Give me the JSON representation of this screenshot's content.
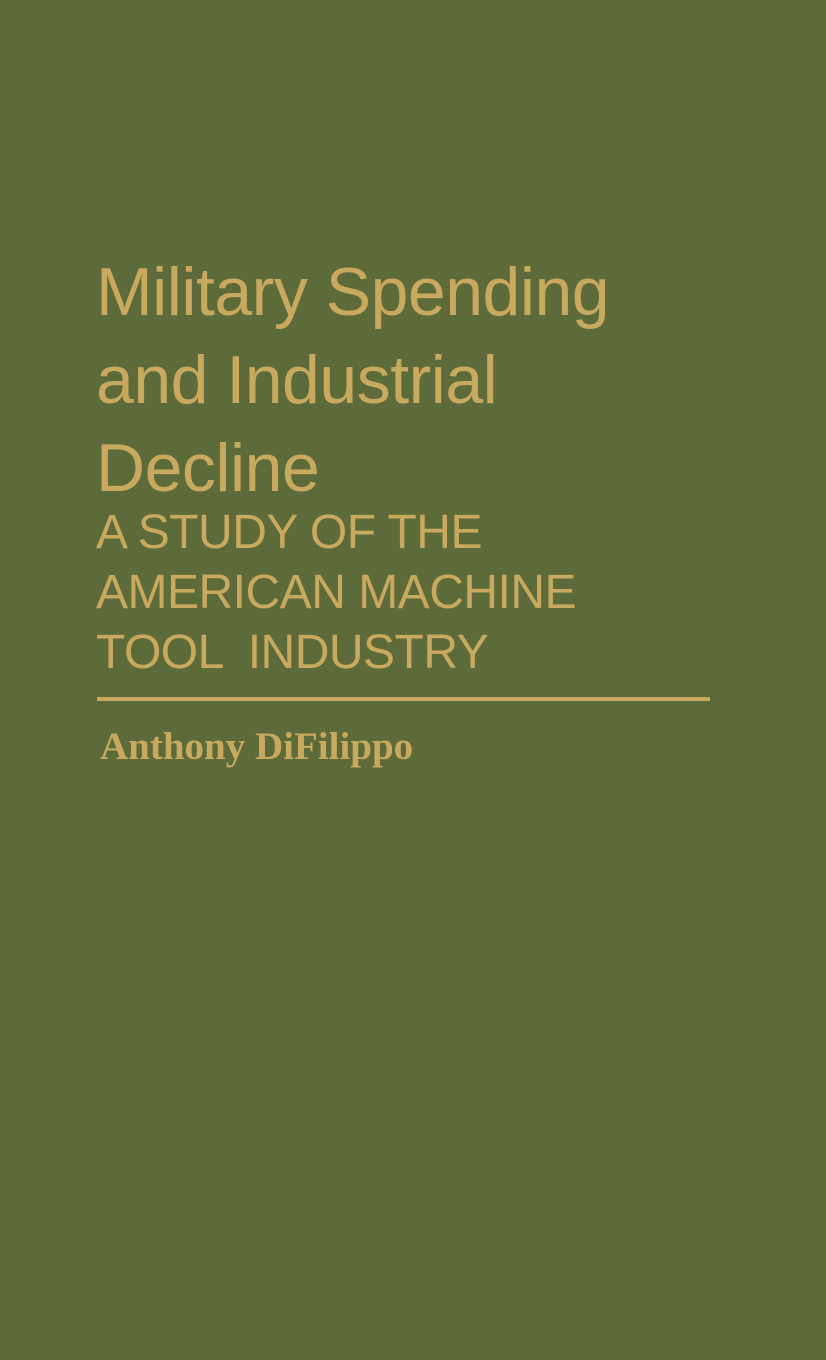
{
  "cover": {
    "title": "Military Spending\nand Industrial\nDecline",
    "subtitle": "A STUDY OF THE\nAMERICAN MACHINE\nTOOL  INDUSTRY",
    "author": "Anthony DiFilippo",
    "colors": {
      "background": "#5d6b3a",
      "text": "#c9a95e"
    }
  }
}
